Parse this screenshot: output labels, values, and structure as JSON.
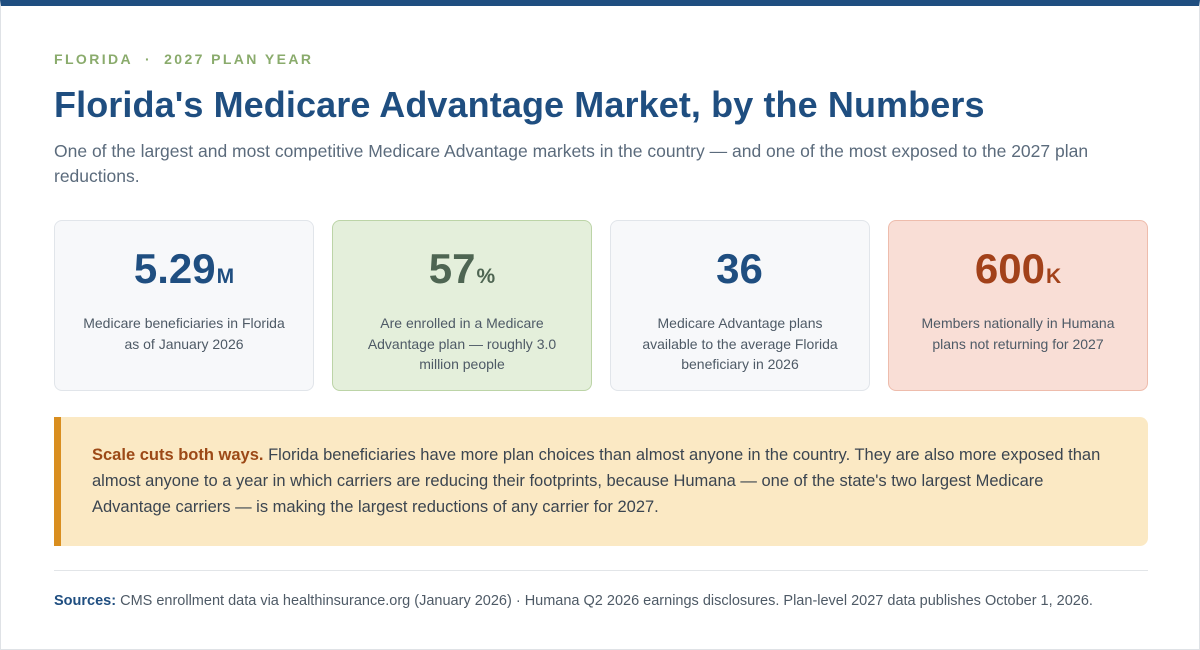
{
  "header": {
    "eyebrow_state": "FLORIDA",
    "eyebrow_separator": "·",
    "eyebrow_year": "2027 PLAN YEAR",
    "title": "Florida's Medicare Advantage Market, by the Numbers",
    "subtitle": "One of the largest and most competitive Medicare Advantage markets in the country — and one of the most exposed to the 2027 plan reductions."
  },
  "stats": [
    {
      "value": "5.29",
      "unit": "M",
      "label": "Medicare beneficiaries in Florida as of January 2026"
    },
    {
      "value": "57",
      "unit": "%",
      "label": "Are enrolled in a Medicare Advantage plan — roughly 3.0 million people"
    },
    {
      "value": "36",
      "unit": "",
      "label": "Medicare Advantage plans available to the average Florida beneficiary in 2026"
    },
    {
      "value": "600",
      "unit": "K",
      "label": "Members nationally in Humana plans not returning for 2027"
    }
  ],
  "callout": {
    "lead": "Scale cuts both ways.",
    "body": " Florida beneficiaries have more plan choices than almost anyone in the country. They are also more exposed than almost anyone to a year in which carriers are reducing their footprints, because Humana — one of the state's two largest Medicare Advantage carriers — is making the largest reductions of any carrier for 2027."
  },
  "footer": {
    "sources_label": "Sources:",
    "sources_text": " CMS enrollment data via healthinsurance.org (January 2026) · Humana Q2 2026 earnings disclosures. Plan-level 2027 data publishes October 1, 2026."
  },
  "colors": {
    "brand_blue": "#1f4e80",
    "accent_green": "#8aab6c",
    "callout_accent": "#d98e1f",
    "alert_red": "#a2411a"
  }
}
